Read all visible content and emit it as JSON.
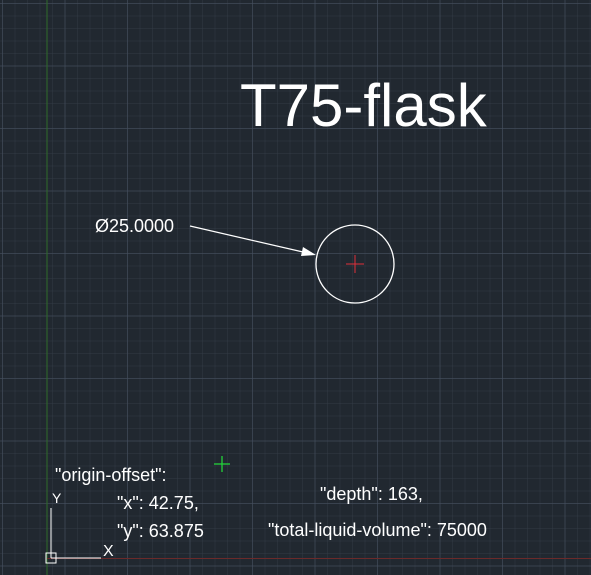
{
  "drawing": {
    "title": "T75-flask",
    "dimension_label": "Ø25.0000",
    "annotation_lines": [
      "\"origin-offset\":",
      "\"x\": 42.75,",
      "\"y\": 63.875",
      "\"depth\": 163,",
      "\"total-liquid-volume\": 75000"
    ]
  },
  "ucs": {
    "x_label": "X",
    "y_label": "Y"
  },
  "colors": {
    "background": "#212830",
    "grid_major": "#46505f",
    "grid_minor": "#343c48",
    "y_axis": "#2e6b2a",
    "x_axis": "#6b2a2a",
    "geometry": "#ffffff",
    "center_mark": "#e0303a",
    "cursor": "#22d13a"
  },
  "icons": {
    "center_mark": "red-crosshair",
    "cursor": "green-crosshair",
    "ucs": "ucs-icon"
  }
}
